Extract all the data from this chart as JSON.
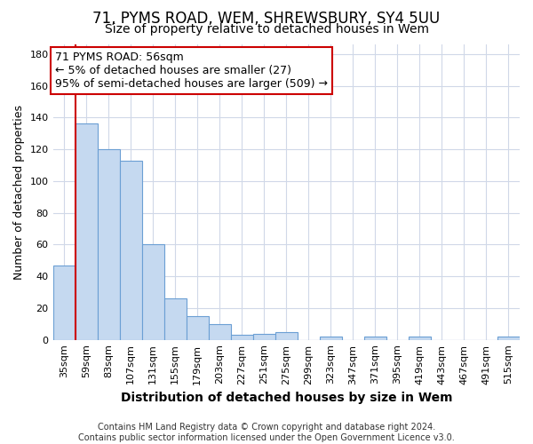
{
  "title": "71, PYMS ROAD, WEM, SHREWSBURY, SY4 5UU",
  "subtitle": "Size of property relative to detached houses in Wem",
  "xlabel": "Distribution of detached houses by size in Wem",
  "ylabel": "Number of detached properties",
  "categories": [
    "35sqm",
    "59sqm",
    "83sqm",
    "107sqm",
    "131sqm",
    "155sqm",
    "179sqm",
    "203sqm",
    "227sqm",
    "251sqm",
    "275sqm",
    "299sqm",
    "323sqm",
    "347sqm",
    "371sqm",
    "395sqm",
    "419sqm",
    "443sqm",
    "467sqm",
    "491sqm",
    "515sqm"
  ],
  "values": [
    47,
    136,
    120,
    113,
    60,
    26,
    15,
    10,
    3,
    4,
    5,
    0,
    2,
    0,
    2,
    0,
    2,
    0,
    0,
    0,
    2
  ],
  "bar_color": "#c5d9f0",
  "bar_edge_color": "#6b9fd4",
  "grid_color": "#d0d8e8",
  "background_color": "#ffffff",
  "annotation_line1": "71 PYMS ROAD: 56sqm",
  "annotation_line2": "← 5% of detached houses are smaller (27)",
  "annotation_line3": "95% of semi-detached houses are larger (509) →",
  "annotation_box_color": "#ffffff",
  "annotation_box_edge_color": "#cc0000",
  "red_line_color": "#cc0000",
  "red_line_x": 0.5,
  "ylim": [
    0,
    186
  ],
  "yticks": [
    0,
    20,
    40,
    60,
    80,
    100,
    120,
    140,
    160,
    180
  ],
  "footer": "Contains HM Land Registry data © Crown copyright and database right 2024.\nContains public sector information licensed under the Open Government Licence v3.0.",
  "title_fontsize": 12,
  "subtitle_fontsize": 10,
  "xlabel_fontsize": 10,
  "ylabel_fontsize": 9,
  "tick_fontsize": 8,
  "annotation_fontsize": 9,
  "footer_fontsize": 7
}
